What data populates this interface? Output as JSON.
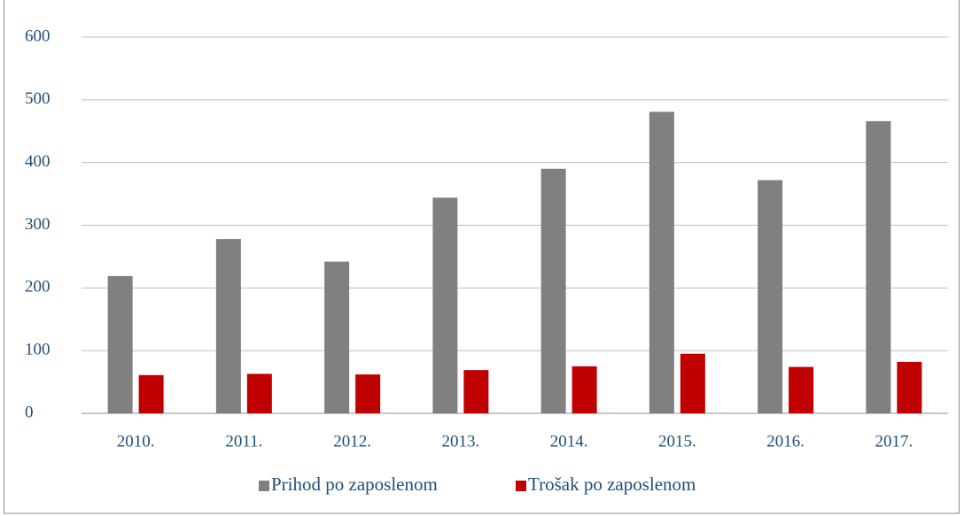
{
  "chart_data": {
    "type": "bar",
    "categories": [
      "2010.",
      "2011.",
      "2012.",
      "2013.",
      "2014.",
      "2015.",
      "2016.",
      "2017."
    ],
    "series": [
      {
        "name": "Prihod po zaposlenom",
        "color": "#808080",
        "values": [
          219,
          278,
          242,
          344,
          390,
          481,
          372,
          466
        ]
      },
      {
        "name": "Trošak po zaposlenom",
        "color": "#c00000",
        "values": [
          61,
          63,
          62,
          69,
          75,
          95,
          74,
          82
        ]
      }
    ],
    "ylim": [
      0,
      600
    ],
    "yticks": [
      0,
      100,
      200,
      300,
      400,
      500,
      600
    ],
    "grid": true,
    "legend": "bottom"
  }
}
